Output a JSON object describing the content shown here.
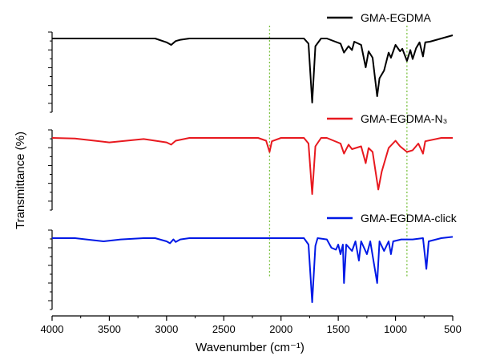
{
  "chart_data": {
    "type": "line",
    "title": "",
    "xlabel": "Wavenumber (cm⁻¹)",
    "ylabel": "Transmittance (%)",
    "xlim": [
      4000,
      500
    ],
    "x_reversed": true,
    "x_ticks": [
      "4000",
      "3500",
      "3000",
      "2500",
      "2000",
      "1500",
      "1000",
      "500"
    ],
    "y_tick_labels_shown": false,
    "grid": false,
    "reference_lines": [
      {
        "x": 2100,
        "style": "dotted",
        "color": "#7CC242"
      },
      {
        "x": 900,
        "style": "dotted",
        "color": "#7CC242"
      }
    ],
    "series": [
      {
        "name": "GMA-EGDMA",
        "color": "#000000",
        "points": [
          [
            4000,
            0.0
          ],
          [
            3600,
            0.0
          ],
          [
            3100,
            0.0
          ],
          [
            3000,
            0.06
          ],
          [
            2960,
            0.1
          ],
          [
            2920,
            0.04
          ],
          [
            2880,
            0.02
          ],
          [
            2800,
            0.0
          ],
          [
            2200,
            0.0
          ],
          [
            1800,
            0.0
          ],
          [
            1760,
            0.08
          ],
          [
            1728,
            1.0
          ],
          [
            1700,
            0.12
          ],
          [
            1650,
            0.0
          ],
          [
            1600,
            0.0
          ],
          [
            1480,
            0.08
          ],
          [
            1450,
            0.22
          ],
          [
            1410,
            0.12
          ],
          [
            1380,
            0.18
          ],
          [
            1360,
            0.05
          ],
          [
            1300,
            0.1
          ],
          [
            1260,
            0.45
          ],
          [
            1235,
            0.2
          ],
          [
            1200,
            0.3
          ],
          [
            1160,
            0.9
          ],
          [
            1140,
            0.62
          ],
          [
            1100,
            0.5
          ],
          [
            1060,
            0.22
          ],
          [
            1040,
            0.3
          ],
          [
            1000,
            0.1
          ],
          [
            960,
            0.2
          ],
          [
            940,
            0.16
          ],
          [
            900,
            0.35
          ],
          [
            870,
            0.18
          ],
          [
            850,
            0.32
          ],
          [
            820,
            0.15
          ],
          [
            790,
            0.06
          ],
          [
            760,
            0.28
          ],
          [
            740,
            0.06
          ],
          [
            700,
            0.05
          ],
          [
            600,
            0.0
          ],
          [
            500,
            -0.05
          ]
        ]
      },
      {
        "name": "GMA-EGDMA-N₃",
        "color": "#E8191F",
        "points": [
          [
            4000,
            0.0
          ],
          [
            3800,
            0.01
          ],
          [
            3500,
            0.08
          ],
          [
            3200,
            0.02
          ],
          [
            3000,
            0.08
          ],
          [
            2960,
            0.12
          ],
          [
            2920,
            0.05
          ],
          [
            2800,
            0.0
          ],
          [
            2200,
            0.0
          ],
          [
            2130,
            0.05
          ],
          [
            2100,
            0.25
          ],
          [
            2080,
            0.06
          ],
          [
            2000,
            0.0
          ],
          [
            1800,
            0.0
          ],
          [
            1760,
            0.1
          ],
          [
            1728,
            1.0
          ],
          [
            1700,
            0.15
          ],
          [
            1650,
            0.0
          ],
          [
            1600,
            0.0
          ],
          [
            1480,
            0.1
          ],
          [
            1450,
            0.28
          ],
          [
            1410,
            0.12
          ],
          [
            1380,
            0.2
          ],
          [
            1300,
            0.15
          ],
          [
            1260,
            0.45
          ],
          [
            1235,
            0.18
          ],
          [
            1200,
            0.25
          ],
          [
            1150,
            0.92
          ],
          [
            1120,
            0.6
          ],
          [
            1060,
            0.18
          ],
          [
            1000,
            0.05
          ],
          [
            960,
            0.15
          ],
          [
            900,
            0.25
          ],
          [
            850,
            0.22
          ],
          [
            800,
            0.1
          ],
          [
            760,
            0.28
          ],
          [
            740,
            0.06
          ],
          [
            600,
            0.0
          ],
          [
            500,
            0.0
          ]
        ]
      },
      {
        "name": "GMA-EGDMA-click",
        "color": "#0019E6",
        "points": [
          [
            4000,
            0.0
          ],
          [
            3800,
            0.0
          ],
          [
            3700,
            0.02
          ],
          [
            3550,
            0.05
          ],
          [
            3400,
            0.02
          ],
          [
            3200,
            0.0
          ],
          [
            3100,
            0.0
          ],
          [
            3000,
            0.05
          ],
          [
            2970,
            0.08
          ],
          [
            2940,
            0.02
          ],
          [
            2920,
            0.06
          ],
          [
            2880,
            0.02
          ],
          [
            2800,
            0.0
          ],
          [
            2200,
            0.0
          ],
          [
            1800,
            0.0
          ],
          [
            1760,
            0.1
          ],
          [
            1728,
            1.0
          ],
          [
            1700,
            0.12
          ],
          [
            1680,
            0.0
          ],
          [
            1600,
            0.02
          ],
          [
            1560,
            0.15
          ],
          [
            1520,
            0.18
          ],
          [
            1500,
            0.1
          ],
          [
            1480,
            0.25
          ],
          [
            1460,
            0.1
          ],
          [
            1450,
            0.7
          ],
          [
            1430,
            0.1
          ],
          [
            1380,
            0.2
          ],
          [
            1350,
            0.05
          ],
          [
            1320,
            0.35
          ],
          [
            1300,
            0.05
          ],
          [
            1250,
            0.25
          ],
          [
            1220,
            0.05
          ],
          [
            1160,
            0.7
          ],
          [
            1140,
            0.05
          ],
          [
            1100,
            0.2
          ],
          [
            1060,
            0.05
          ],
          [
            1040,
            0.25
          ],
          [
            1020,
            0.05
          ],
          [
            950,
            0.02
          ],
          [
            900,
            0.02
          ],
          [
            850,
            0.02
          ],
          [
            760,
            0.0
          ],
          [
            730,
            0.48
          ],
          [
            710,
            0.05
          ],
          [
            600,
            0.0
          ],
          [
            500,
            -0.02
          ]
        ]
      }
    ]
  }
}
